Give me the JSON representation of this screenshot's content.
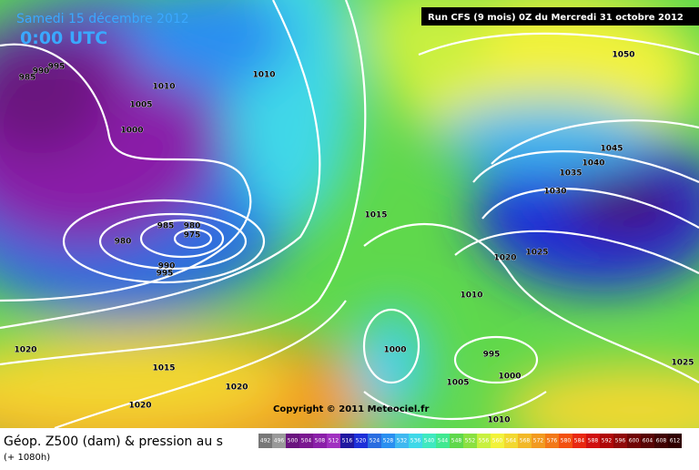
{
  "header": {
    "date": "Samedi 15 décembre 2012",
    "time": "0:00 UTC",
    "run": "Run CFS (9 mois) 0Z du Mercredi 31 octobre 2012"
  },
  "footer": {
    "title": "Géop. Z500 (dam) & pression au s",
    "lead": "(+ 1080h)",
    "copyright": "Copyright © 2011 Meteociel.fr"
  },
  "isobars": [
    985,
    990,
    995,
    1010,
    1010,
    1005,
    1000,
    985,
    980,
    975,
    980,
    990,
    995,
    1015,
    1020,
    1025,
    1030,
    1035,
    1040,
    1045,
    1050,
    1010,
    1000,
    995,
    1000,
    1005,
    1010,
    1020,
    1015,
    1020,
    1020,
    1025
  ],
  "scale": [
    492,
    496,
    500,
    504,
    508,
    512,
    516,
    520,
    524,
    528,
    532,
    536,
    540,
    544,
    548,
    552,
    556,
    560,
    564,
    568,
    572,
    576,
    580,
    584,
    588,
    592,
    596,
    600,
    604,
    608,
    612
  ]
}
